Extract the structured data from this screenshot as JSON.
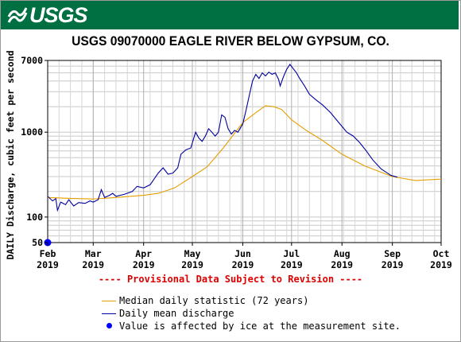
{
  "header": {
    "logo_text": "USGS",
    "colors": {
      "banner": "#006f41",
      "logo_text": "#ffffff"
    }
  },
  "chart_data": {
    "type": "line",
    "title": "USGS 09070000 EAGLE RIVER BELOW GYPSUM, CO.",
    "ylabel": "DAILY Discharge, cubic feet per second",
    "yscale": "log",
    "ylim": [
      50,
      7000
    ],
    "y_tick_labels": [
      {
        "value": 7000,
        "label": "7000"
      },
      {
        "value": 1000,
        "label": "1000"
      },
      {
        "value": 100,
        "label": "100"
      },
      {
        "value": 50,
        "label": "50"
      }
    ],
    "x_start": "2019-02-01",
    "x_end": "2019-10-01",
    "x_tick_labels": [
      {
        "date": "2019-02-01",
        "month": "Feb",
        "year": "2019"
      },
      {
        "date": "2019-03-01",
        "month": "Mar",
        "year": "2019"
      },
      {
        "date": "2019-04-01",
        "month": "Apr",
        "year": "2019"
      },
      {
        "date": "2019-05-01",
        "month": "May",
        "year": "2019"
      },
      {
        "date": "2019-06-01",
        "month": "Jun",
        "year": "2019"
      },
      {
        "date": "2019-07-01",
        "month": "Jul",
        "year": "2019"
      },
      {
        "date": "2019-08-01",
        "month": "Aug",
        "year": "2019"
      },
      {
        "date": "2019-09-01",
        "month": "Sep",
        "year": "2019"
      },
      {
        "date": "2019-10-01",
        "month": "Oct",
        "year": "2019"
      }
    ],
    "grid": true,
    "series": [
      {
        "name": "Median daily statistic (72 years)",
        "color": "#e69f00",
        "points": [
          [
            "2019-02-01",
            170
          ],
          [
            "2019-02-15",
            166
          ],
          [
            "2019-03-01",
            163
          ],
          [
            "2019-03-15",
            170
          ],
          [
            "2019-04-01",
            180
          ],
          [
            "2019-04-10",
            190
          ],
          [
            "2019-04-20",
            220
          ],
          [
            "2019-05-01",
            300
          ],
          [
            "2019-05-10",
            390
          ],
          [
            "2019-05-20",
            650
          ],
          [
            "2019-06-01",
            1300
          ],
          [
            "2019-06-10",
            1750
          ],
          [
            "2019-06-15",
            2050
          ],
          [
            "2019-06-20",
            2000
          ],
          [
            "2019-06-25",
            1850
          ],
          [
            "2019-07-01",
            1400
          ],
          [
            "2019-07-10",
            1050
          ],
          [
            "2019-07-20",
            800
          ],
          [
            "2019-08-01",
            550
          ],
          [
            "2019-08-15",
            400
          ],
          [
            "2019-09-01",
            300
          ],
          [
            "2019-09-15",
            270
          ],
          [
            "2019-10-01",
            280
          ]
        ]
      },
      {
        "name": "Daily mean discharge",
        "color": "#00009c",
        "points": [
          [
            "2019-02-01",
            175
          ],
          [
            "2019-02-04",
            155
          ],
          [
            "2019-02-06",
            165
          ],
          [
            "2019-02-07",
            120
          ],
          [
            "2019-02-09",
            150
          ],
          [
            "2019-02-12",
            140
          ],
          [
            "2019-02-14",
            160
          ],
          [
            "2019-02-17",
            135
          ],
          [
            "2019-02-20",
            148
          ],
          [
            "2019-02-24",
            145
          ],
          [
            "2019-02-27",
            155
          ],
          [
            "2019-03-01",
            150
          ],
          [
            "2019-03-04",
            160
          ],
          [
            "2019-03-06",
            210
          ],
          [
            "2019-03-08",
            170
          ],
          [
            "2019-03-11",
            180
          ],
          [
            "2019-03-13",
            190
          ],
          [
            "2019-03-15",
            175
          ],
          [
            "2019-03-20",
            185
          ],
          [
            "2019-03-25",
            200
          ],
          [
            "2019-03-28",
            230
          ],
          [
            "2019-04-01",
            220
          ],
          [
            "2019-04-05",
            240
          ],
          [
            "2019-04-10",
            330
          ],
          [
            "2019-04-13",
            380
          ],
          [
            "2019-04-16",
            320
          ],
          [
            "2019-04-19",
            330
          ],
          [
            "2019-04-22",
            380
          ],
          [
            "2019-04-24",
            550
          ],
          [
            "2019-04-27",
            620
          ],
          [
            "2019-04-30",
            650
          ],
          [
            "2019-05-03",
            1000
          ],
          [
            "2019-05-05",
            850
          ],
          [
            "2019-05-07",
            780
          ],
          [
            "2019-05-09",
            900
          ],
          [
            "2019-05-11",
            1100
          ],
          [
            "2019-05-13",
            1000
          ],
          [
            "2019-05-15",
            900
          ],
          [
            "2019-05-17",
            1000
          ],
          [
            "2019-05-19",
            1600
          ],
          [
            "2019-05-21",
            1500
          ],
          [
            "2019-05-23",
            1100
          ],
          [
            "2019-05-25",
            950
          ],
          [
            "2019-05-27",
            1050
          ],
          [
            "2019-05-29",
            1000
          ],
          [
            "2019-06-01",
            1250
          ],
          [
            "2019-06-03",
            1800
          ],
          [
            "2019-06-05",
            2700
          ],
          [
            "2019-06-07",
            4000
          ],
          [
            "2019-06-09",
            4800
          ],
          [
            "2019-06-11",
            4300
          ],
          [
            "2019-06-13",
            5000
          ],
          [
            "2019-06-15",
            4600
          ],
          [
            "2019-06-17",
            5100
          ],
          [
            "2019-06-19",
            4800
          ],
          [
            "2019-06-21",
            5000
          ],
          [
            "2019-06-23",
            4200
          ],
          [
            "2019-06-24",
            3500
          ],
          [
            "2019-06-26",
            4500
          ],
          [
            "2019-06-28",
            5500
          ],
          [
            "2019-06-30",
            6300
          ],
          [
            "2019-07-02",
            5600
          ],
          [
            "2019-07-04",
            5000
          ],
          [
            "2019-07-06",
            4300
          ],
          [
            "2019-07-09",
            3500
          ],
          [
            "2019-07-12",
            2800
          ],
          [
            "2019-07-16",
            2400
          ],
          [
            "2019-07-20",
            2100
          ],
          [
            "2019-07-25",
            1700
          ],
          [
            "2019-07-30",
            1300
          ],
          [
            "2019-08-04",
            1000
          ],
          [
            "2019-08-08",
            900
          ],
          [
            "2019-08-12",
            750
          ],
          [
            "2019-08-16",
            600
          ],
          [
            "2019-08-20",
            470
          ],
          [
            "2019-08-25",
            370
          ],
          [
            "2019-08-31",
            310
          ],
          [
            "2019-09-04",
            295
          ]
        ]
      }
    ],
    "ice_points": [
      {
        "date": "2019-02-01",
        "value": 50
      }
    ],
    "provisional_note": "---- Provisional Data Subject to Revision ----",
    "legend": {
      "placement": "bottom",
      "items": [
        {
          "label": "Median daily statistic (72 years)",
          "symbol": "line",
          "color": "#e69f00"
        },
        {
          "label": "Daily mean discharge",
          "symbol": "line",
          "color": "#00009c"
        },
        {
          "label": "Value is affected by ice at the measurement site.",
          "symbol": "dot",
          "color": "#0000ff"
        }
      ]
    }
  }
}
